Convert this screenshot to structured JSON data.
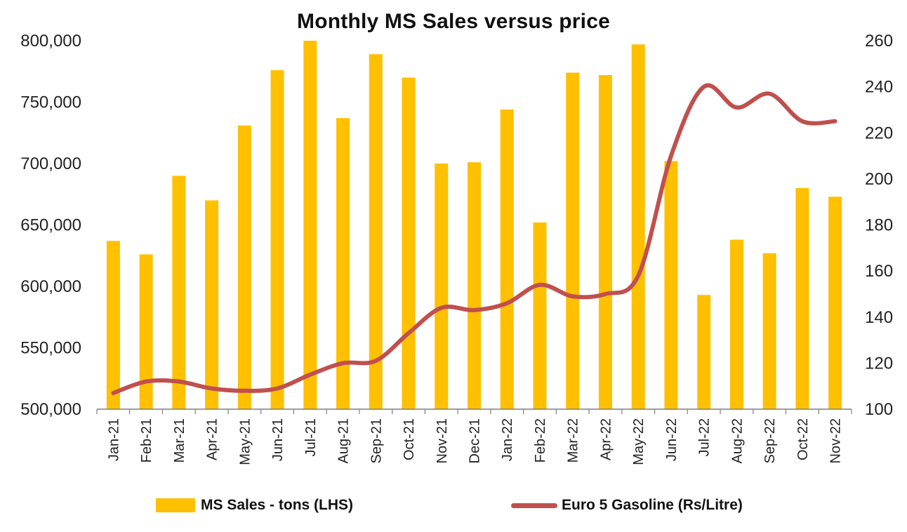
{
  "chart_data": {
    "type": "bar+line",
    "title": "Monthly MS Sales versus price",
    "categories": [
      "Jan-21",
      "Feb-21",
      "Mar-21",
      "Apr-21",
      "May-21",
      "Jun-21",
      "Jul-21",
      "Aug-21",
      "Sep-21",
      "Oct-21",
      "Nov-21",
      "Dec-21",
      "Jan-22",
      "Feb-22",
      "Mar-22",
      "Apr-22",
      "May-22",
      "Jun-22",
      "Jul-22",
      "Aug-22",
      "Sep-22",
      "Oct-22",
      "Nov-22"
    ],
    "series": [
      {
        "name": "MS Sales - tons (LHS)",
        "type": "bar",
        "axis": "left",
        "color": "#FFC000",
        "values": [
          637000,
          626000,
          690000,
          670000,
          731000,
          776000,
          800000,
          737000,
          789000,
          770000,
          700000,
          701000,
          744000,
          652000,
          774000,
          772000,
          797000,
          702000,
          593000,
          638000,
          627000,
          680000,
          673000
        ]
      },
      {
        "name": "Euro 5 Gasoline (Rs/Litre)",
        "type": "line",
        "axis": "right",
        "color": "#C0504D",
        "values": [
          107,
          112,
          112,
          109,
          108,
          109,
          115,
          120,
          121,
          133,
          144,
          143,
          146,
          154,
          149,
          150,
          158,
          210,
          240,
          231,
          237,
          225,
          225
        ]
      }
    ],
    "y_left": {
      "min": 500000,
      "max": 800000,
      "ticks": [
        "500,000",
        "550,000",
        "600,000",
        "650,000",
        "700,000",
        "750,000",
        "800,000"
      ]
    },
    "y_right": {
      "min": 100,
      "max": 260,
      "ticks": [
        "100",
        "120",
        "140",
        "160",
        "180",
        "200",
        "220",
        "240",
        "260"
      ]
    },
    "grid": false,
    "legend": "bottom"
  }
}
